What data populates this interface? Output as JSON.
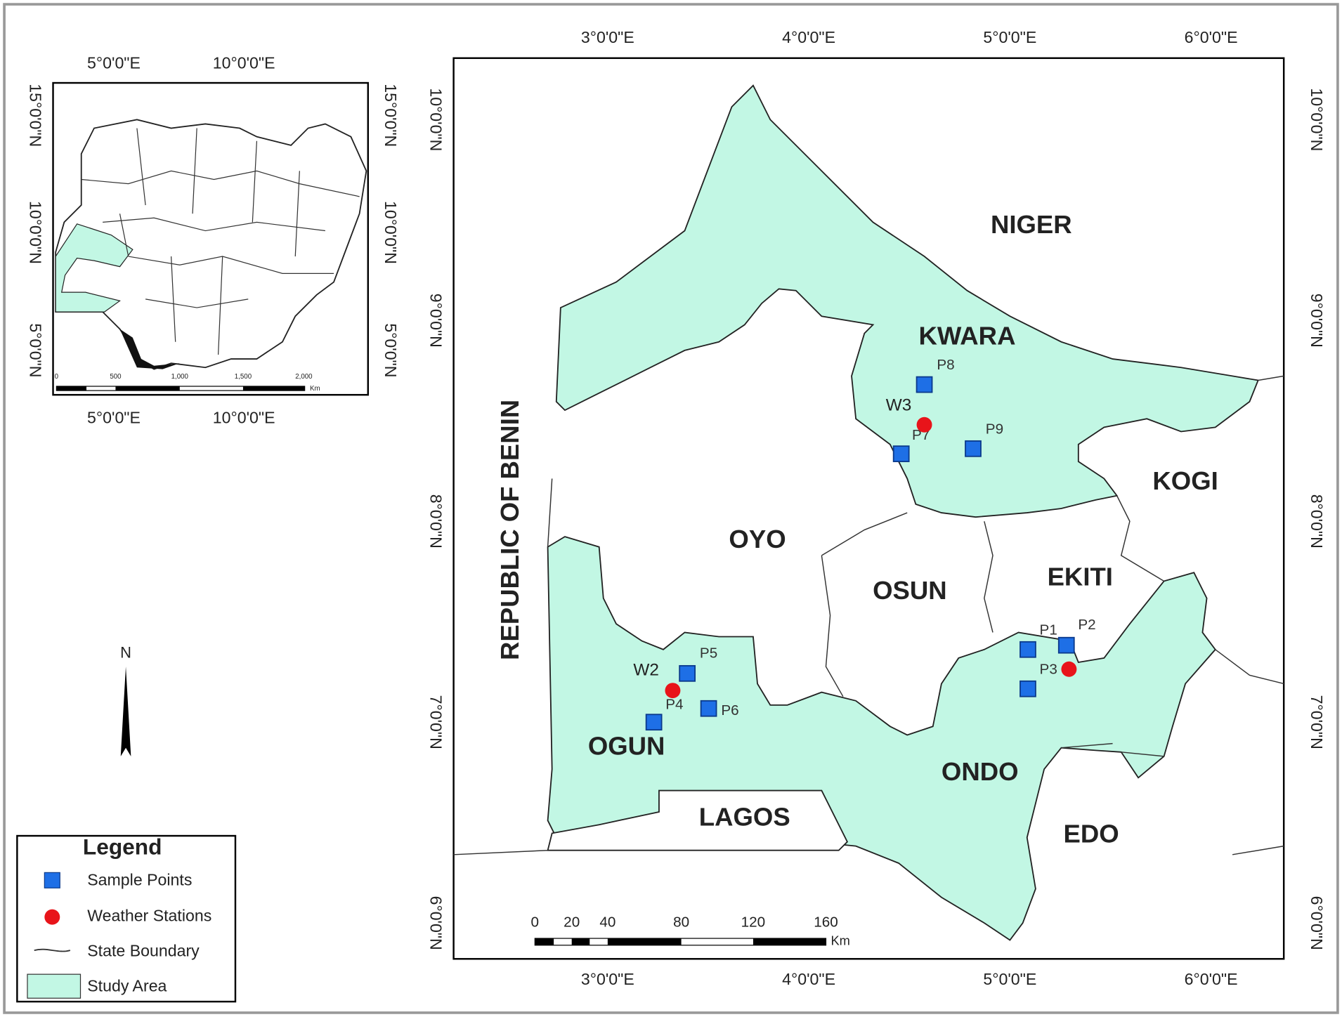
{
  "inset_map": {
    "longitude_labels": [
      "5°0'0\"E",
      "10°0'0\"E"
    ],
    "latitude_labels": [
      "15°0'0\"N",
      "10°0'0\"N",
      "5°0'0\"N"
    ],
    "scale_labels": [
      "0",
      "500",
      "1,000",
      "1,500",
      "2,000"
    ],
    "scale_unit": "Km"
  },
  "main_map": {
    "longitude_labels": [
      "3°0'0\"E",
      "4°0'0\"E",
      "5°0'0\"E",
      "6°0'0\"E"
    ],
    "latitude_labels": [
      "10°0'0\"N",
      "9°0'0\"N",
      "8°0'0\"N",
      "7°0'0\"N",
      "6°0'0\"N"
    ],
    "country_label": "REPUBLIC OF BENIN",
    "regions": [
      "NIGER",
      "KWARA",
      "KOGI",
      "OYO",
      "OSUN",
      "EKITI",
      "OGUN",
      "ONDO",
      "LAGOS",
      "EDO"
    ],
    "sample_points": [
      "P1",
      "P2",
      "P3",
      "P4",
      "P5",
      "P6",
      "P7",
      "P8",
      "P9"
    ],
    "weather_stations": [
      "W2",
      "W3",
      null
    ],
    "scale_labels": [
      "0",
      "20",
      "40",
      "80",
      "120",
      "160"
    ],
    "scale_unit": "Km"
  },
  "north_arrow": {
    "label": "N"
  },
  "legend": {
    "title": "Legend",
    "items": [
      "Sample Points",
      "Weather Stations",
      "State Boundary",
      "Study Area"
    ]
  }
}
